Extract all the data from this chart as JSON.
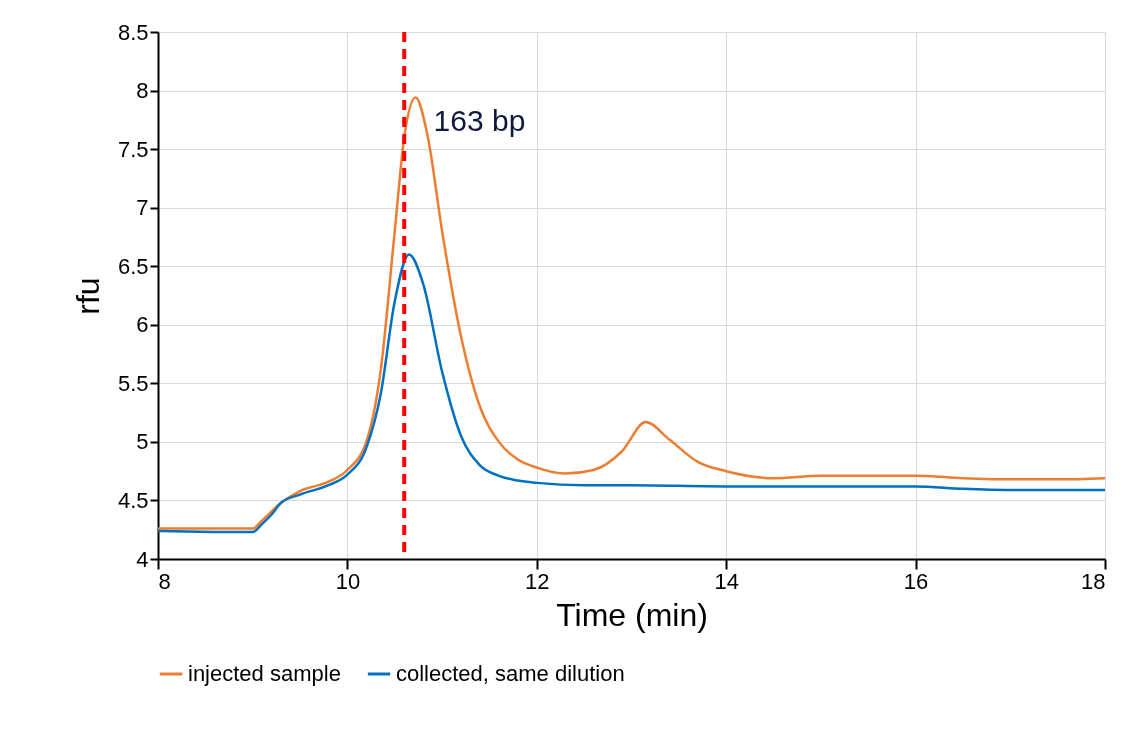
{
  "chart_data": {
    "type": "line",
    "xlabel": "Time (min)",
    "ylabel": "rfu",
    "xlim": [
      8,
      18
    ],
    "xticks": [
      8,
      10,
      12,
      14,
      16,
      18
    ],
    "ylim": [
      4,
      8.5
    ],
    "yticks": [
      4,
      4.5,
      5,
      5.5,
      6,
      6.5,
      7,
      7.5,
      8,
      8.5
    ],
    "grid": true,
    "legend": "bottom",
    "line_style": "solid",
    "series": [
      {
        "name": "injected sample",
        "color": "#ed7d31",
        "x": [
          8,
          9,
          9.1,
          9.3,
          9.5,
          9.8,
          10,
          10.2,
          10.35,
          10.5,
          10.6,
          10.72,
          10.85,
          11,
          11.2,
          11.4,
          11.6,
          11.8,
          12,
          12.3,
          12.6,
          12.9,
          13.15,
          13.4,
          13.7,
          14,
          14.5,
          15,
          15.5,
          16,
          16.5,
          17,
          17.5,
          18
        ],
        "values": [
          4.26,
          4.26,
          4.33,
          4.48,
          4.58,
          4.66,
          4.76,
          5,
          5.6,
          6.8,
          7.6,
          7.94,
          7.6,
          6.8,
          5.9,
          5.3,
          5,
          4.85,
          4.78,
          4.73,
          4.76,
          4.92,
          5.17,
          5.02,
          4.83,
          4.75,
          4.69,
          4.71,
          4.71,
          4.71,
          4.69,
          4.68,
          4.68,
          4.69
        ]
      },
      {
        "name": "collected, same dilution",
        "color": "#0070c0",
        "x": [
          8,
          9,
          9.1,
          9.2,
          9.3,
          9.5,
          9.8,
          10,
          10.2,
          10.35,
          10.5,
          10.65,
          10.8,
          11,
          11.2,
          11.4,
          11.6,
          11.8,
          12,
          12.5,
          13,
          14,
          15,
          16,
          16.5,
          17,
          18
        ],
        "values": [
          4.24,
          4.23,
          4.3,
          4.38,
          4.48,
          4.55,
          4.63,
          4.72,
          4.95,
          5.4,
          6.2,
          6.6,
          6.35,
          5.6,
          5.05,
          4.8,
          4.71,
          4.67,
          4.65,
          4.63,
          4.63,
          4.62,
          4.62,
          4.62,
          4.6,
          4.59,
          4.59
        ]
      }
    ],
    "ref_lines": [
      {
        "axis": "x",
        "value": 10.6,
        "color": "#ff0000",
        "line_style": "dashed"
      }
    ],
    "annotations": [
      {
        "text": "163 bp",
        "x": 10.72,
        "y": 7.94
      }
    ]
  }
}
